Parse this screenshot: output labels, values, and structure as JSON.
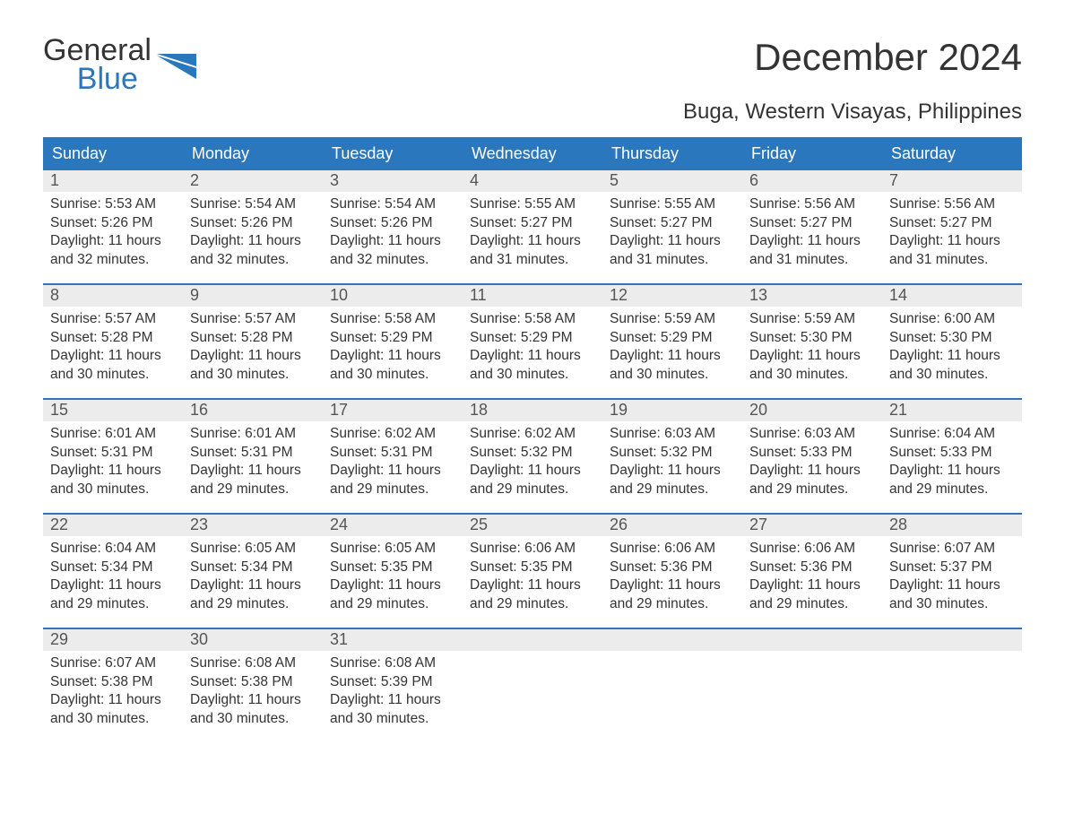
{
  "logo": {
    "line1": "General",
    "line2": "Blue"
  },
  "title": "December 2024",
  "subtitle": "Buga, Western Visayas, Philippines",
  "colors": {
    "header_bg": "#2a77bd",
    "header_text": "#ffffff",
    "daynum_bg": "#ececec",
    "daynum_text": "#555555",
    "body_text": "#333333",
    "page_bg": "#ffffff",
    "logo_blue": "#2a77bd"
  },
  "typography": {
    "title_fontsize": 42,
    "subtitle_fontsize": 24,
    "weekday_fontsize": 18,
    "daynum_fontsize": 18,
    "body_fontsize": 15.5,
    "font_family": "Arial"
  },
  "weekdays": [
    "Sunday",
    "Monday",
    "Tuesday",
    "Wednesday",
    "Thursday",
    "Friday",
    "Saturday"
  ],
  "weeks": [
    [
      {
        "num": "1",
        "sunrise": "Sunrise: 5:53 AM",
        "sunset": "Sunset: 5:26 PM",
        "day1": "Daylight: 11 hours",
        "day2": "and 32 minutes."
      },
      {
        "num": "2",
        "sunrise": "Sunrise: 5:54 AM",
        "sunset": "Sunset: 5:26 PM",
        "day1": "Daylight: 11 hours",
        "day2": "and 32 minutes."
      },
      {
        "num": "3",
        "sunrise": "Sunrise: 5:54 AM",
        "sunset": "Sunset: 5:26 PM",
        "day1": "Daylight: 11 hours",
        "day2": "and 32 minutes."
      },
      {
        "num": "4",
        "sunrise": "Sunrise: 5:55 AM",
        "sunset": "Sunset: 5:27 PM",
        "day1": "Daylight: 11 hours",
        "day2": "and 31 minutes."
      },
      {
        "num": "5",
        "sunrise": "Sunrise: 5:55 AM",
        "sunset": "Sunset: 5:27 PM",
        "day1": "Daylight: 11 hours",
        "day2": "and 31 minutes."
      },
      {
        "num": "6",
        "sunrise": "Sunrise: 5:56 AM",
        "sunset": "Sunset: 5:27 PM",
        "day1": "Daylight: 11 hours",
        "day2": "and 31 minutes."
      },
      {
        "num": "7",
        "sunrise": "Sunrise: 5:56 AM",
        "sunset": "Sunset: 5:27 PM",
        "day1": "Daylight: 11 hours",
        "day2": "and 31 minutes."
      }
    ],
    [
      {
        "num": "8",
        "sunrise": "Sunrise: 5:57 AM",
        "sunset": "Sunset: 5:28 PM",
        "day1": "Daylight: 11 hours",
        "day2": "and 30 minutes."
      },
      {
        "num": "9",
        "sunrise": "Sunrise: 5:57 AM",
        "sunset": "Sunset: 5:28 PM",
        "day1": "Daylight: 11 hours",
        "day2": "and 30 minutes."
      },
      {
        "num": "10",
        "sunrise": "Sunrise: 5:58 AM",
        "sunset": "Sunset: 5:29 PM",
        "day1": "Daylight: 11 hours",
        "day2": "and 30 minutes."
      },
      {
        "num": "11",
        "sunrise": "Sunrise: 5:58 AM",
        "sunset": "Sunset: 5:29 PM",
        "day1": "Daylight: 11 hours",
        "day2": "and 30 minutes."
      },
      {
        "num": "12",
        "sunrise": "Sunrise: 5:59 AM",
        "sunset": "Sunset: 5:29 PM",
        "day1": "Daylight: 11 hours",
        "day2": "and 30 minutes."
      },
      {
        "num": "13",
        "sunrise": "Sunrise: 5:59 AM",
        "sunset": "Sunset: 5:30 PM",
        "day1": "Daylight: 11 hours",
        "day2": "and 30 minutes."
      },
      {
        "num": "14",
        "sunrise": "Sunrise: 6:00 AM",
        "sunset": "Sunset: 5:30 PM",
        "day1": "Daylight: 11 hours",
        "day2": "and 30 minutes."
      }
    ],
    [
      {
        "num": "15",
        "sunrise": "Sunrise: 6:01 AM",
        "sunset": "Sunset: 5:31 PM",
        "day1": "Daylight: 11 hours",
        "day2": "and 30 minutes."
      },
      {
        "num": "16",
        "sunrise": "Sunrise: 6:01 AM",
        "sunset": "Sunset: 5:31 PM",
        "day1": "Daylight: 11 hours",
        "day2": "and 29 minutes."
      },
      {
        "num": "17",
        "sunrise": "Sunrise: 6:02 AM",
        "sunset": "Sunset: 5:31 PM",
        "day1": "Daylight: 11 hours",
        "day2": "and 29 minutes."
      },
      {
        "num": "18",
        "sunrise": "Sunrise: 6:02 AM",
        "sunset": "Sunset: 5:32 PM",
        "day1": "Daylight: 11 hours",
        "day2": "and 29 minutes."
      },
      {
        "num": "19",
        "sunrise": "Sunrise: 6:03 AM",
        "sunset": "Sunset: 5:32 PM",
        "day1": "Daylight: 11 hours",
        "day2": "and 29 minutes."
      },
      {
        "num": "20",
        "sunrise": "Sunrise: 6:03 AM",
        "sunset": "Sunset: 5:33 PM",
        "day1": "Daylight: 11 hours",
        "day2": "and 29 minutes."
      },
      {
        "num": "21",
        "sunrise": "Sunrise: 6:04 AM",
        "sunset": "Sunset: 5:33 PM",
        "day1": "Daylight: 11 hours",
        "day2": "and 29 minutes."
      }
    ],
    [
      {
        "num": "22",
        "sunrise": "Sunrise: 6:04 AM",
        "sunset": "Sunset: 5:34 PM",
        "day1": "Daylight: 11 hours",
        "day2": "and 29 minutes."
      },
      {
        "num": "23",
        "sunrise": "Sunrise: 6:05 AM",
        "sunset": "Sunset: 5:34 PM",
        "day1": "Daylight: 11 hours",
        "day2": "and 29 minutes."
      },
      {
        "num": "24",
        "sunrise": "Sunrise: 6:05 AM",
        "sunset": "Sunset: 5:35 PM",
        "day1": "Daylight: 11 hours",
        "day2": "and 29 minutes."
      },
      {
        "num": "25",
        "sunrise": "Sunrise: 6:06 AM",
        "sunset": "Sunset: 5:35 PM",
        "day1": "Daylight: 11 hours",
        "day2": "and 29 minutes."
      },
      {
        "num": "26",
        "sunrise": "Sunrise: 6:06 AM",
        "sunset": "Sunset: 5:36 PM",
        "day1": "Daylight: 11 hours",
        "day2": "and 29 minutes."
      },
      {
        "num": "27",
        "sunrise": "Sunrise: 6:06 AM",
        "sunset": "Sunset: 5:36 PM",
        "day1": "Daylight: 11 hours",
        "day2": "and 29 minutes."
      },
      {
        "num": "28",
        "sunrise": "Sunrise: 6:07 AM",
        "sunset": "Sunset: 5:37 PM",
        "day1": "Daylight: 11 hours",
        "day2": "and 30 minutes."
      }
    ],
    [
      {
        "num": "29",
        "sunrise": "Sunrise: 6:07 AM",
        "sunset": "Sunset: 5:38 PM",
        "day1": "Daylight: 11 hours",
        "day2": "and 30 minutes."
      },
      {
        "num": "30",
        "sunrise": "Sunrise: 6:08 AM",
        "sunset": "Sunset: 5:38 PM",
        "day1": "Daylight: 11 hours",
        "day2": "and 30 minutes."
      },
      {
        "num": "31",
        "sunrise": "Sunrise: 6:08 AM",
        "sunset": "Sunset: 5:39 PM",
        "day1": "Daylight: 11 hours",
        "day2": "and 30 minutes."
      },
      {
        "empty": true
      },
      {
        "empty": true
      },
      {
        "empty": true
      },
      {
        "empty": true
      }
    ]
  ]
}
